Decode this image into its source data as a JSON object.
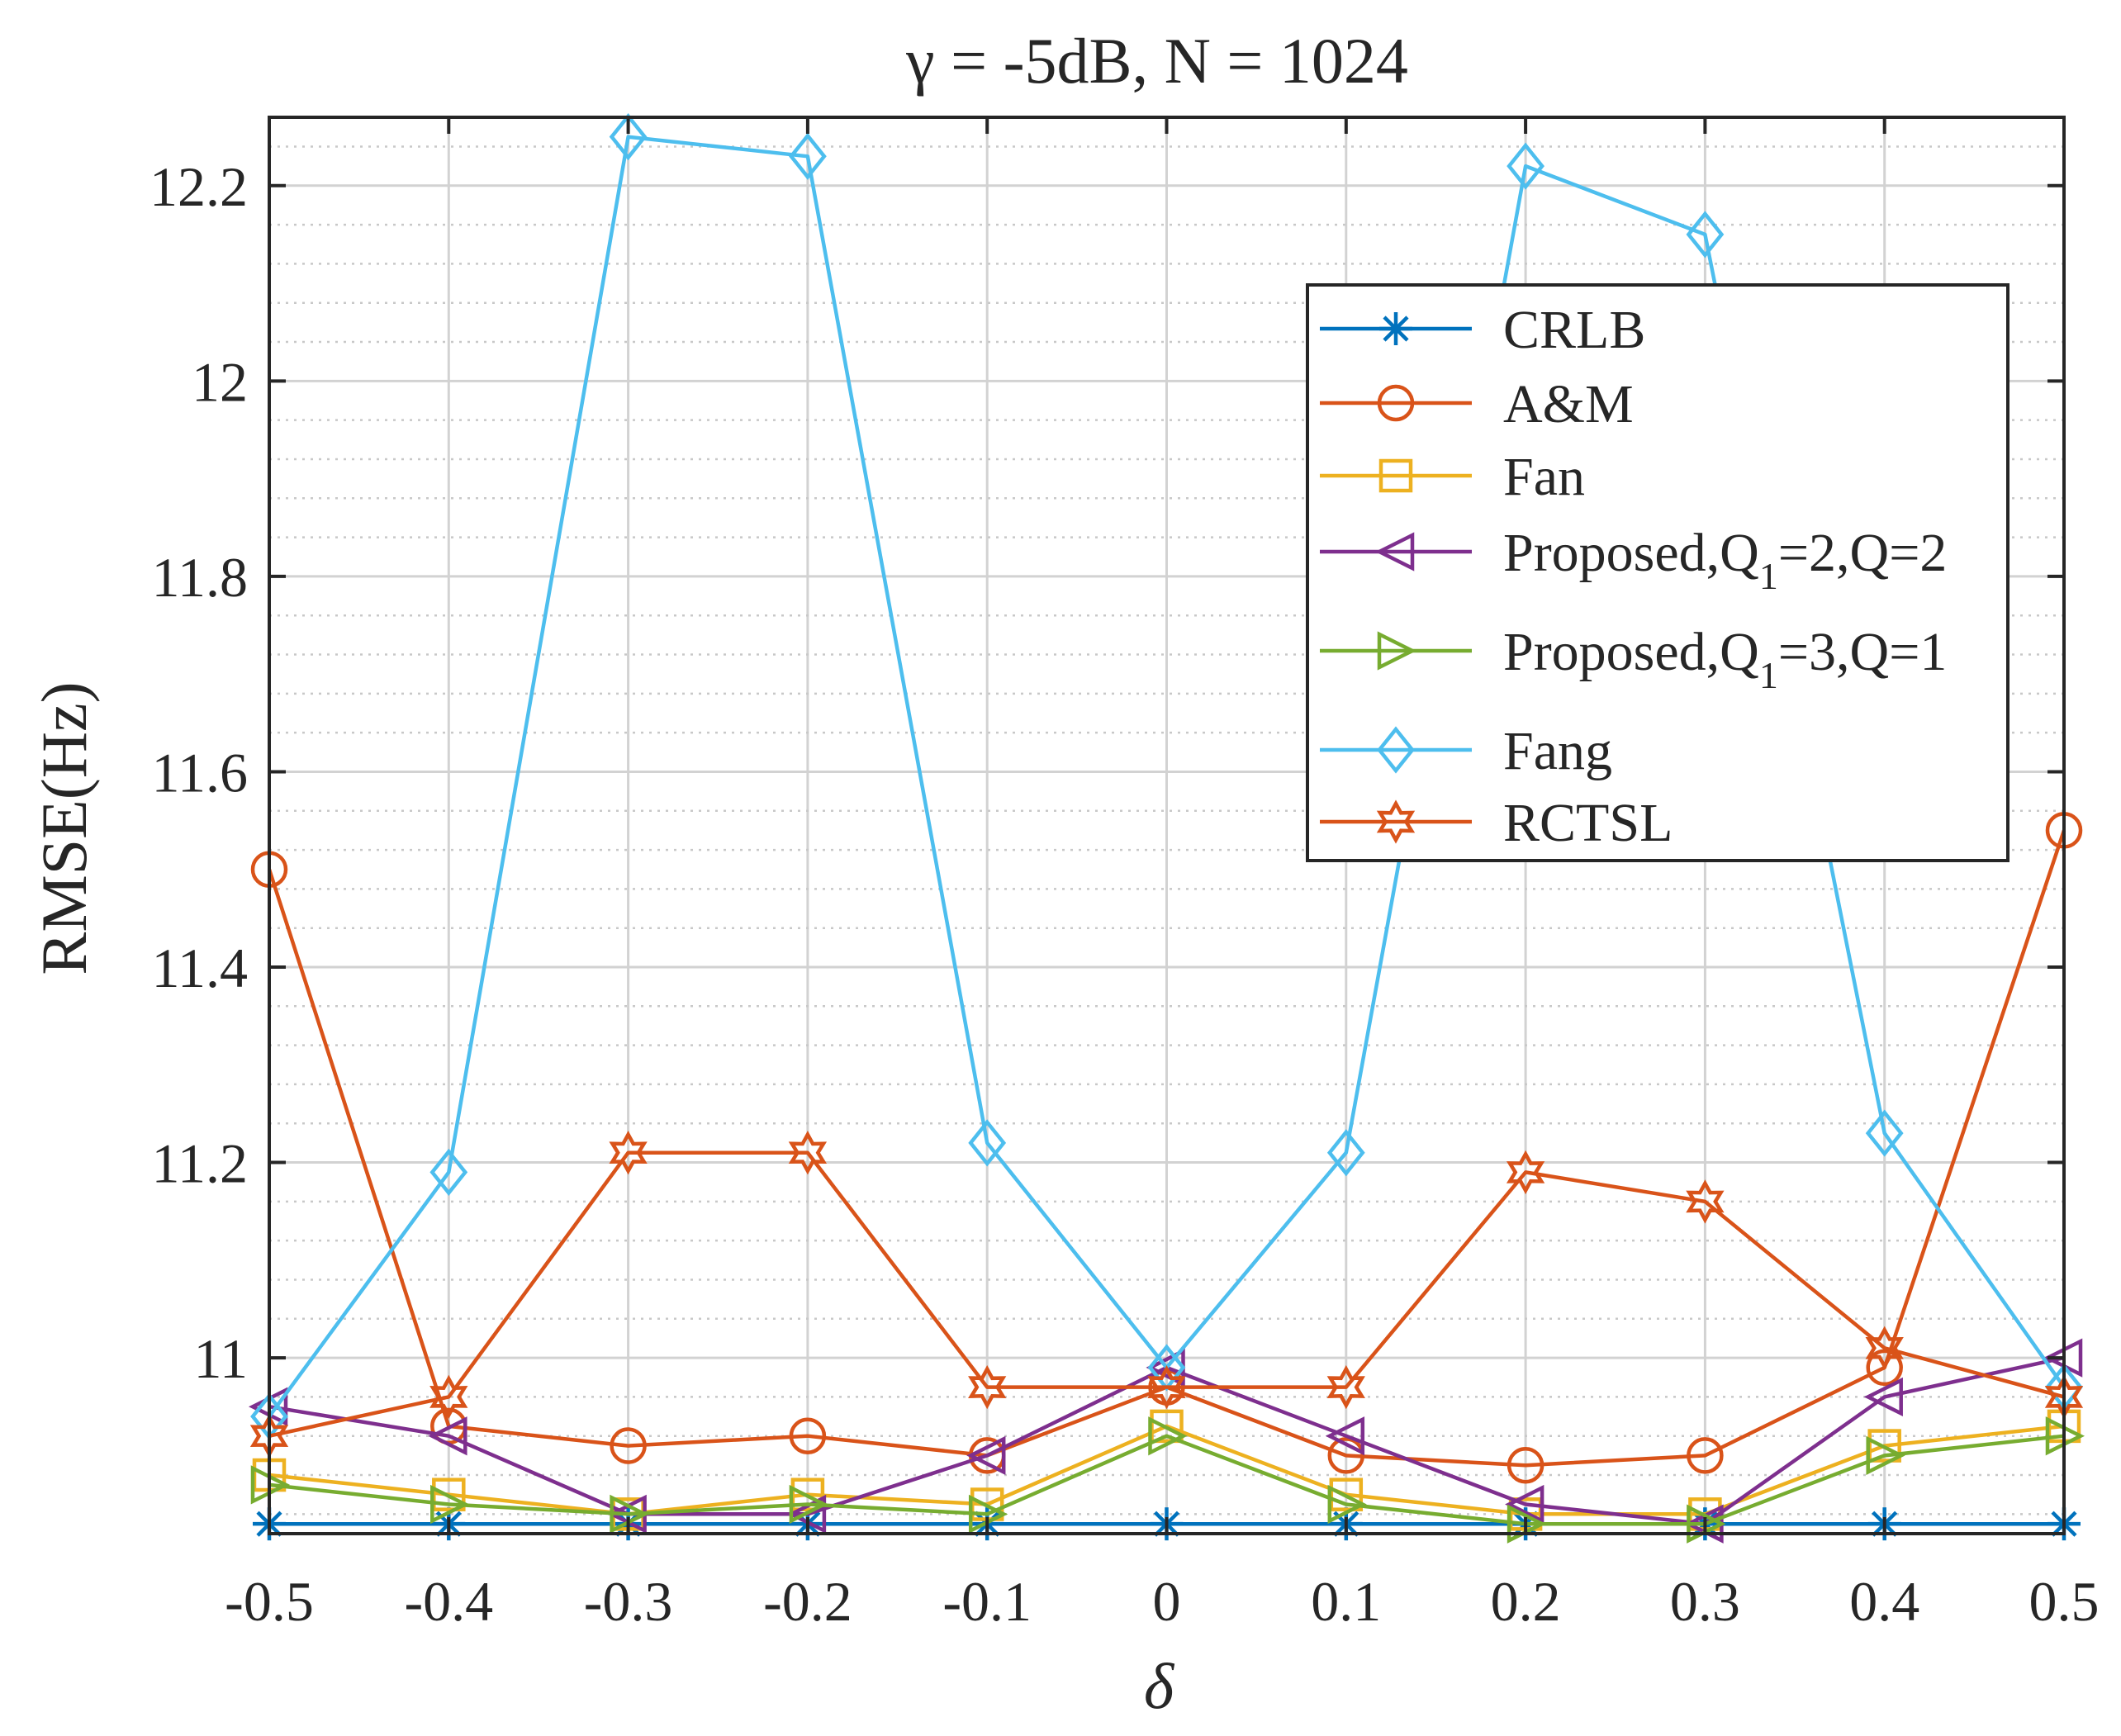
{
  "chart_data": {
    "type": "line",
    "title": "γ = -5dB, N = 1024",
    "xlabel": "δ",
    "ylabel": "RMSE(Hz)",
    "x": [
      -0.5,
      -0.4,
      -0.3,
      -0.2,
      -0.1,
      0,
      0.1,
      0.2,
      0.3,
      0.4,
      0.5
    ],
    "x_tick_labels": [
      "-0.5",
      "-0.4",
      "-0.3",
      "-0.2",
      "-0.1",
      "0",
      "0.1",
      "0.2",
      "0.3",
      "0.4",
      "0.5"
    ],
    "y_ticks": [
      11,
      11.2,
      11.4,
      11.6,
      11.8,
      12,
      12.2
    ],
    "y_tick_labels": [
      "11",
      "11.2",
      "11.4",
      "11.6",
      "11.8",
      "12",
      "12.2"
    ],
    "xlim": [
      -0.5,
      0.5
    ],
    "ylim": [
      10.82,
      12.27
    ],
    "grid": true,
    "legend_position": "upper-right",
    "series": [
      {
        "name": "CRLB",
        "marker": "asterisk",
        "color": "#0072BD",
        "values": [
          10.83,
          10.83,
          10.83,
          10.83,
          10.83,
          10.83,
          10.83,
          10.83,
          10.83,
          10.83,
          10.83
        ]
      },
      {
        "name": "A&M",
        "marker": "circle",
        "color": "#D95319",
        "values": [
          11.5,
          10.93,
          10.91,
          10.92,
          10.9,
          10.97,
          10.9,
          10.89,
          10.9,
          10.99,
          11.54
        ]
      },
      {
        "name": "Fan",
        "marker": "square",
        "color": "#EDB120",
        "values": [
          10.88,
          10.86,
          10.84,
          10.86,
          10.85,
          10.93,
          10.86,
          10.84,
          10.84,
          10.91,
          10.93
        ]
      },
      {
        "name": "Proposed,Q",
        "sub": "1",
        "suffix": "=2,Q=2",
        "marker": "triangle-left",
        "color": "#7E2F8E",
        "values": [
          10.95,
          10.92,
          10.84,
          10.84,
          10.9,
          10.99,
          10.92,
          10.85,
          10.83,
          10.96,
          11.0
        ]
      },
      {
        "name": "Proposed,Q",
        "sub": "1",
        "suffix": "=3,Q=1",
        "marker": "triangle-right",
        "color": "#77AC30",
        "values": [
          10.87,
          10.85,
          10.84,
          10.85,
          10.84,
          10.92,
          10.85,
          10.83,
          10.83,
          10.9,
          10.92
        ]
      },
      {
        "name": "Fang",
        "marker": "diamond",
        "color": "#4DBEEE",
        "values": [
          10.94,
          11.19,
          12.25,
          12.23,
          11.22,
          10.99,
          11.21,
          12.22,
          12.15,
          11.23,
          10.97
        ]
      },
      {
        "name": "RCTSL",
        "marker": "hexagram",
        "color": "#D95319",
        "values": [
          10.92,
          10.96,
          11.21,
          11.21,
          10.97,
          10.97,
          10.97,
          11.19,
          11.16,
          11.01,
          10.96
        ]
      }
    ]
  }
}
